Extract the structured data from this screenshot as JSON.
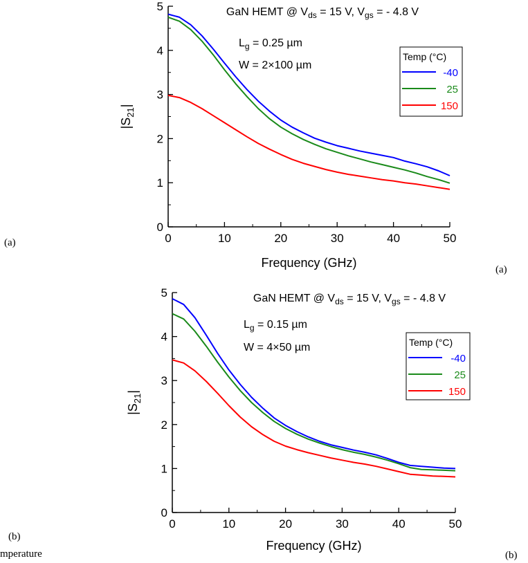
{
  "panel_labels": {
    "left_a": "(a)",
    "right_a": "(a)",
    "left_b": "(b)",
    "right_b": "(b)"
  },
  "clipped_caption": "mperature",
  "chart_data": [
    {
      "type": "line",
      "title": "GaN HEMT @ V_ds = 15 V, V_gs = - 4.8 V",
      "title_parts": {
        "prefix": "GaN HEMT @ V",
        "sub1": "ds",
        "mid": " = 15 V, V",
        "sub2": "gs",
        "suffix": " = - 4.8 V"
      },
      "annotation": {
        "lg_text": "L_g = 0.25 µm",
        "lg_prefix": "L",
        "lg_sub": "g",
        "lg_value": " = 0.25 µm",
        "w_text": "W = 2×100 µm"
      },
      "xlabel": "Frequency (GHz)",
      "ylabel": "|S21|",
      "ylabel_main": "|S",
      "ylabel_sub": "21",
      "ylabel_end": "|",
      "xlim": [
        0,
        50
      ],
      "ylim": [
        0,
        5
      ],
      "xticks": [
        0,
        10,
        20,
        30,
        40,
        50
      ],
      "yticks": [
        0,
        1,
        2,
        3,
        4,
        5
      ],
      "x": [
        0,
        2,
        4,
        6,
        8,
        10,
        12,
        14,
        16,
        18,
        20,
        22,
        24,
        26,
        28,
        30,
        32,
        34,
        36,
        38,
        40,
        42,
        44,
        46,
        48,
        50
      ],
      "legend_title": "Temp (°C)",
      "legend_position": "top-right",
      "grid": false,
      "series": [
        {
          "name": "-40",
          "color": "#0000ff",
          "values": [
            4.82,
            4.75,
            4.58,
            4.33,
            4.03,
            3.71,
            3.4,
            3.11,
            2.85,
            2.62,
            2.42,
            2.26,
            2.13,
            2.01,
            1.92,
            1.84,
            1.78,
            1.72,
            1.67,
            1.62,
            1.57,
            1.49,
            1.43,
            1.36,
            1.27,
            1.16
          ]
        },
        {
          "name": "25",
          "color": "#1a8a1a",
          "values": [
            4.75,
            4.66,
            4.47,
            4.21,
            3.9,
            3.56,
            3.24,
            2.95,
            2.68,
            2.45,
            2.26,
            2.11,
            1.98,
            1.87,
            1.77,
            1.69,
            1.61,
            1.54,
            1.47,
            1.41,
            1.35,
            1.29,
            1.22,
            1.14,
            1.07,
            0.99
          ]
        },
        {
          "name": "150",
          "color": "#ff0000",
          "values": [
            2.98,
            2.93,
            2.82,
            2.68,
            2.52,
            2.36,
            2.2,
            2.04,
            1.89,
            1.76,
            1.64,
            1.53,
            1.44,
            1.37,
            1.3,
            1.24,
            1.19,
            1.15,
            1.11,
            1.07,
            1.04,
            1.0,
            0.97,
            0.93,
            0.89,
            0.85
          ]
        }
      ]
    },
    {
      "type": "line",
      "title": "GaN HEMT @ V_ds = 15 V, V_gs = - 4.8 V",
      "title_parts": {
        "prefix": "GaN HEMT @ V",
        "sub1": "ds",
        "mid": " = 15 V, V",
        "sub2": "gs",
        "suffix": " = - 4.8 V"
      },
      "annotation": {
        "lg_text": "L_g = 0.15 µm",
        "lg_prefix": "L",
        "lg_sub": "g",
        "lg_value": " = 0.15 µm",
        "w_text": "W = 4×50 µm"
      },
      "xlabel": "Frequency (GHz)",
      "ylabel": "|S21|",
      "ylabel_main": "|S",
      "ylabel_sub": "21",
      "ylabel_end": "|",
      "xlim": [
        0,
        50
      ],
      "ylim": [
        0,
        5
      ],
      "xticks": [
        0,
        10,
        20,
        30,
        40,
        50
      ],
      "yticks": [
        0,
        1,
        2,
        3,
        4,
        5
      ],
      "x": [
        0,
        2,
        4,
        6,
        8,
        10,
        12,
        14,
        16,
        18,
        20,
        22,
        24,
        26,
        28,
        30,
        32,
        34,
        36,
        38,
        40,
        42,
        44,
        46,
        48,
        50
      ],
      "legend_title": "Temp (°C)",
      "legend_position": "top-right",
      "grid": false,
      "series": [
        {
          "name": "-40",
          "color": "#0000ff",
          "values": [
            4.86,
            4.73,
            4.43,
            4.03,
            3.62,
            3.24,
            2.91,
            2.62,
            2.37,
            2.15,
            1.98,
            1.84,
            1.72,
            1.62,
            1.54,
            1.48,
            1.42,
            1.37,
            1.31,
            1.23,
            1.14,
            1.07,
            1.05,
            1.03,
            1.01,
            1.0
          ]
        },
        {
          "name": "25",
          "color": "#1a8a1a",
          "values": [
            4.52,
            4.4,
            4.12,
            3.78,
            3.42,
            3.08,
            2.77,
            2.5,
            2.27,
            2.07,
            1.91,
            1.78,
            1.67,
            1.58,
            1.5,
            1.43,
            1.37,
            1.32,
            1.26,
            1.19,
            1.11,
            1.02,
            0.98,
            0.97,
            0.96,
            0.95
          ]
        },
        {
          "name": "150",
          "color": "#ff0000",
          "values": [
            3.47,
            3.4,
            3.22,
            2.98,
            2.71,
            2.43,
            2.17,
            1.95,
            1.77,
            1.62,
            1.51,
            1.43,
            1.36,
            1.3,
            1.24,
            1.19,
            1.14,
            1.1,
            1.05,
            0.99,
            0.93,
            0.87,
            0.85,
            0.83,
            0.82,
            0.81
          ]
        }
      ]
    }
  ]
}
